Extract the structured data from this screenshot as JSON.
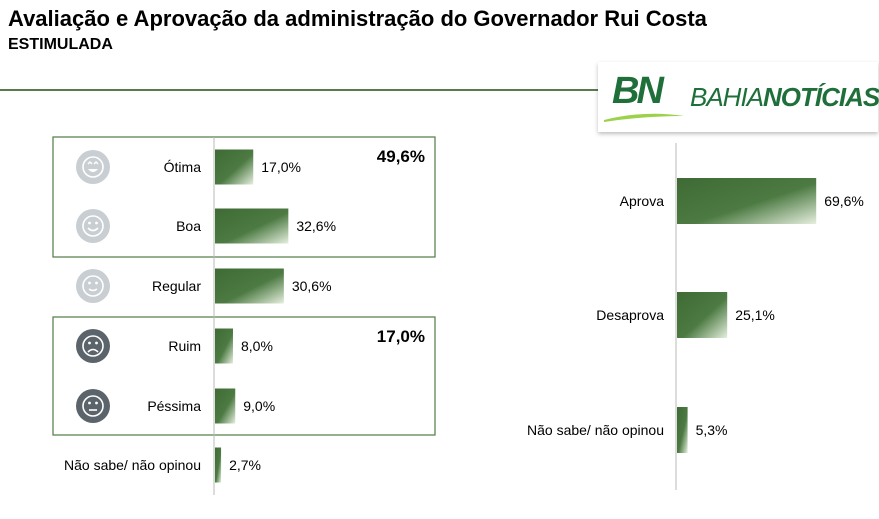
{
  "header": {
    "title": "Avaliação e Aprovação da administração do Governador Rui Costa",
    "subtitle": "ESTIMULADA"
  },
  "logo": {
    "mark": "BN",
    "text_regular": "BAHIA",
    "text_bold": "NOTÍCIAS"
  },
  "colors": {
    "bar_dark": "#3f6a35",
    "bar_light": "#e6efdf",
    "frame": "#4f7a43",
    "icon_light": "#c9ced3",
    "icon_dark": "#5c646b"
  },
  "chart_data": [
    {
      "type": "bar",
      "orientation": "horizontal",
      "categories": [
        "Ótima",
        "Boa",
        "Regular",
        "Ruim",
        "Péssima",
        "Não sabe/ não opinou"
      ],
      "values": [
        17.0,
        32.6,
        30.6,
        8.0,
        9.0,
        2.7
      ],
      "value_labels": [
        "17,0%",
        "32,6%",
        "30,6%",
        "8,0%",
        "9,0%",
        "2,7%"
      ],
      "icons": [
        "grin-face-icon",
        "smile-face-icon",
        "neutral-smile-face-icon",
        "frown-face-icon",
        "sad-face-icon",
        ""
      ],
      "group_totals": [
        {
          "label": "49,6%",
          "members": [
            "Ótima",
            "Boa"
          ]
        },
        {
          "label": "17,0%",
          "members": [
            "Ruim",
            "Péssima"
          ]
        }
      ]
    },
    {
      "type": "bar",
      "orientation": "horizontal",
      "categories": [
        "Aprova",
        "Desaprova",
        "Não sabe/ não opinou"
      ],
      "values": [
        69.6,
        25.1,
        5.3
      ],
      "value_labels": [
        "69,6%",
        "25,1%",
        "5,3%"
      ]
    }
  ]
}
